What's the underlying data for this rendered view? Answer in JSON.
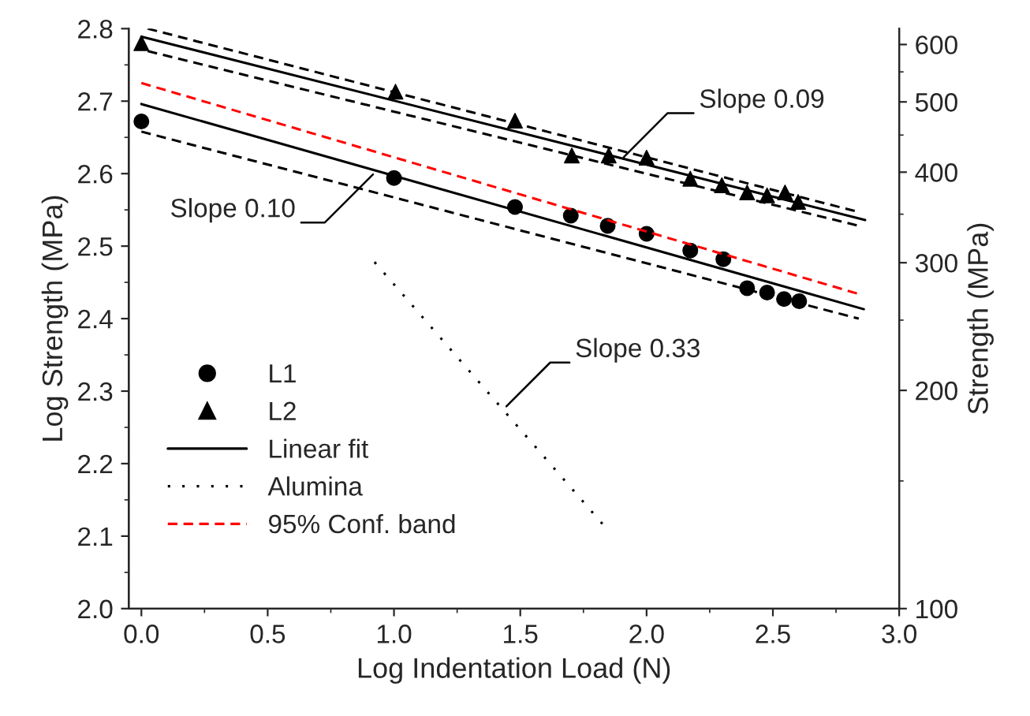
{
  "chart_data": {
    "type": "scatter",
    "xlabel": "Log Indentation Load (N)",
    "ylabel": "Log Strength (MPa)",
    "y2label": "Strength (MPa)",
    "xlim": [
      -0.05,
      3.0
    ],
    "xticks": [
      {
        "value": 0,
        "label": "0.0"
      },
      {
        "value": 0.5,
        "label": "0.5"
      },
      {
        "value": 1,
        "label": "1.0"
      },
      {
        "value": 1.5,
        "label": "1.5"
      },
      {
        "value": 2,
        "label": "2.0"
      },
      {
        "value": 2.5,
        "label": "2.5"
      },
      {
        "value": 3,
        "label": "3.0"
      }
    ],
    "ylim": [
      2.0,
      2.8
    ],
    "yticks": [
      {
        "value": 2,
        "label": "2.0"
      },
      {
        "value": 2.1,
        "label": "2.1"
      },
      {
        "value": 2.2,
        "label": "2.2"
      },
      {
        "value": 2.3,
        "label": "2.3"
      },
      {
        "value": 2.4,
        "label": "2.4"
      },
      {
        "value": 2.5,
        "label": "2.5"
      },
      {
        "value": 2.6,
        "label": "2.6"
      },
      {
        "value": 2.7,
        "label": "2.7"
      },
      {
        "value": 2.8,
        "label": "2.8"
      }
    ],
    "y2lim": [
      100,
      631
    ],
    "y2ticks": [
      100,
      200,
      300,
      400,
      500,
      600
    ],
    "log": "y2",
    "grid": false,
    "legend": "bottom left",
    "series": [
      {
        "name": "L1",
        "marker": "circle",
        "color": "#000000",
        "x": [
          0.0,
          1.0,
          1.479,
          1.7,
          1.846,
          2.0,
          2.173,
          2.304,
          2.398,
          2.477,
          2.544,
          2.604
        ],
        "values": [
          2.672,
          2.594,
          2.554,
          2.542,
          2.528,
          2.517,
          2.494,
          2.482,
          2.442,
          2.436,
          2.427,
          2.424
        ]
      },
      {
        "name": "L2",
        "marker": "triangle",
        "color": "#000000",
        "x": [
          0.0,
          1.006,
          1.479,
          1.704,
          1.85,
          2.0,
          2.173,
          2.298,
          2.398,
          2.477,
          2.548,
          2.6
        ],
        "values": [
          2.78,
          2.713,
          2.673,
          2.625,
          2.625,
          2.622,
          2.593,
          2.584,
          2.574,
          2.57,
          2.574,
          2.561
        ]
      },
      {
        "name": "Linear fit",
        "type": "line",
        "line_style": "solid",
        "color": "#000000",
        "x": [
          0.0,
          2.86
        ],
        "values": [
          2.696,
          2.413
        ]
      },
      {
        "type": "line",
        "line_style": "solid",
        "color": "#000000",
        "x": [
          0.0,
          2.865
        ],
        "values": [
          2.789,
          2.536
        ]
      },
      {
        "name": "Alumina",
        "type": "line",
        "line_style": "dotted",
        "color": "#000000",
        "x": [
          0.923,
          1.825
        ],
        "values": [
          2.478,
          2.117
        ]
      },
      {
        "name": "95% Conf. band",
        "type": "line",
        "line_style": "dashed",
        "color": "#ff0000",
        "x": [
          0.0,
          2.84
        ],
        "values": [
          2.725,
          2.434
        ]
      },
      {
        "type": "line",
        "line_style": "dashed",
        "color": "#000000",
        "x": [
          0.0,
          2.84
        ],
        "values": [
          2.658,
          2.4
        ]
      },
      {
        "type": "line",
        "line_style": "dashed",
        "color": "#000000",
        "x": [
          0.025,
          2.84
        ],
        "values": [
          2.8,
          2.547
        ]
      },
      {
        "type": "line",
        "line_style": "dashed",
        "color": "#000000",
        "x": [
          0.025,
          2.84
        ],
        "values": [
          2.769,
          2.528
        ]
      }
    ],
    "annotations": [
      {
        "text": "Slope 0.10",
        "x": 0.917,
        "y": 2.599
      },
      {
        "text": "Slope 0.09",
        "x": 1.91,
        "y": 2.623
      },
      {
        "text": "Slope 0.33",
        "x": 1.445,
        "y": 2.279
      }
    ]
  }
}
